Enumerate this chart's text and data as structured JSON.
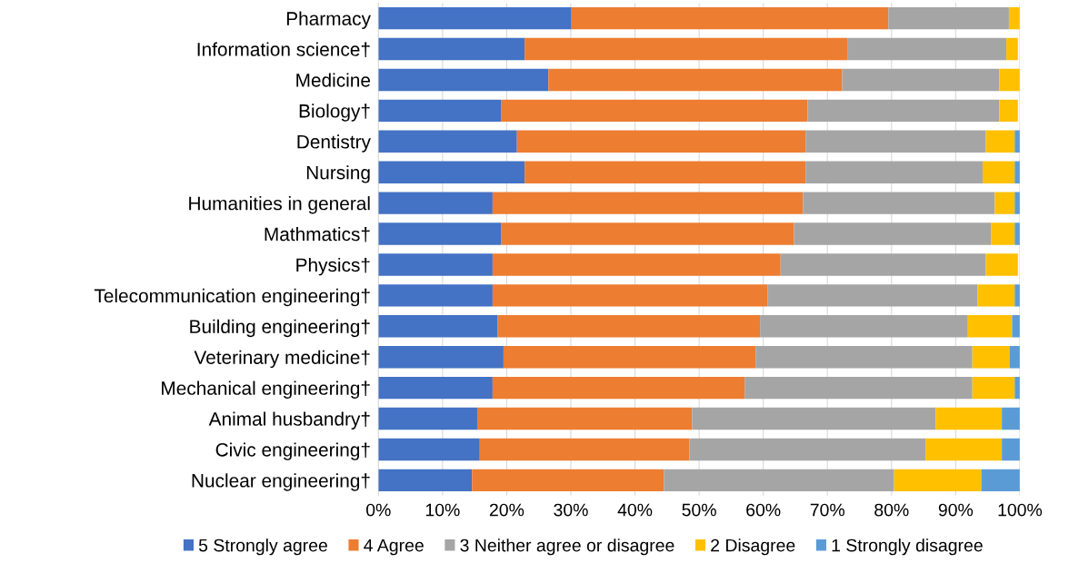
{
  "chart_data": {
    "type": "bar",
    "orientation": "horizontal",
    "stacked": true,
    "categories": [
      "Pharmacy",
      "Information science†",
      "Medicine",
      "Biology†",
      "Dentistry",
      "Nursing",
      "Humanities in general",
      "Mathmatics†",
      "Physics†",
      "Telecommunication engineering†",
      "Building engineering†",
      "Veterinary medicine†",
      "Mechanical engineering†",
      "Animal husbandry†",
      "Civic engineering†",
      "Nuclear engineering†"
    ],
    "series": [
      {
        "name": "5 Strongly agree",
        "color": "#4472c4",
        "values": [
          30.1,
          22.8,
          26.5,
          19.1,
          21.6,
          22.8,
          17.8,
          19.1,
          17.8,
          17.8,
          18.6,
          19.5,
          17.8,
          15.4,
          15.8,
          14.6
        ]
      },
      {
        "name": "4 Agree",
        "color": "#ed7d31",
        "values": [
          49.4,
          50.3,
          45.8,
          47.8,
          45.0,
          43.8,
          48.4,
          45.7,
          44.9,
          42.9,
          40.9,
          39.3,
          39.3,
          33.5,
          32.7,
          29.9
        ]
      },
      {
        "name": "3 Neither agree or disagree",
        "color": "#a5a5a5",
        "values": [
          18.8,
          24.8,
          24.5,
          29.9,
          28.1,
          27.6,
          29.9,
          30.7,
          32.0,
          32.7,
          32.4,
          33.8,
          35.5,
          38.0,
          36.8,
          35.9
        ]
      },
      {
        "name": "2 Disagree",
        "color": "#ffc000",
        "values": [
          1.7,
          1.8,
          3.2,
          2.9,
          4.5,
          5.0,
          3.1,
          3.7,
          5.0,
          5.8,
          6.9,
          5.8,
          6.6,
          10.3,
          11.9,
          13.6
        ]
      },
      {
        "name": "1 Strongly disagree",
        "color": "#5b9bd5",
        "values": [
          0,
          null,
          0,
          null,
          0.8,
          0.8,
          0.8,
          0.8,
          null,
          0.8,
          1.2,
          1.6,
          0.8,
          2.8,
          2.8,
          6.0
        ]
      }
    ],
    "xlim": [
      0,
      100
    ],
    "xticks": [
      {
        "value": 0,
        "label": "0%"
      },
      {
        "value": 10,
        "label": "10%"
      },
      {
        "value": 20,
        "label": "20%"
      },
      {
        "value": 30,
        "label": "30%"
      },
      {
        "value": 40,
        "label": "40%"
      },
      {
        "value": 50,
        "label": "50%"
      },
      {
        "value": 60,
        "label": "60%"
      },
      {
        "value": 70,
        "label": "70%"
      },
      {
        "value": 80,
        "label": "80%"
      },
      {
        "value": 90,
        "label": "90%"
      },
      {
        "value": 100,
        "label": "100%"
      }
    ],
    "grid": "x",
    "legend": "bottom"
  }
}
